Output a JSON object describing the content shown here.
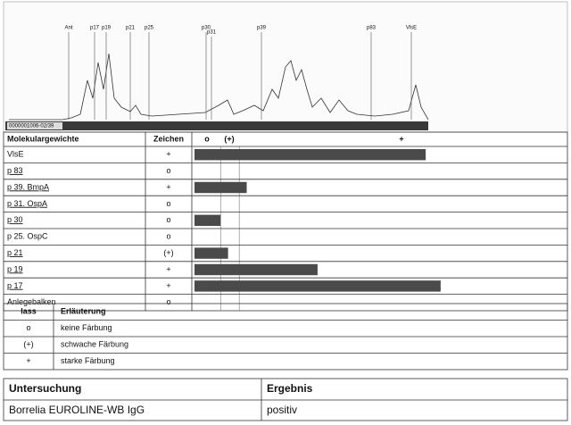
{
  "scan": {
    "band_labels": [
      "Ant",
      "p17",
      "p19",
      "p21",
      "p25",
      "p30",
      "p31",
      "p39",
      "p83",
      "VlsE"
    ],
    "strip_id": "0000001006-02/39"
  },
  "chart_data": {
    "type": "bar",
    "header": [
      "Molekulargewichte",
      "Zeichen"
    ],
    "scale_labels": [
      "o",
      "(+)",
      "+"
    ],
    "categories": [
      "VlsE",
      "p 83",
      "p 39. BmpA",
      "p 31. OspA",
      "p 30",
      "p 25. OspC",
      "p 21",
      "p 19",
      "p 17",
      "Anlegebalken"
    ],
    "signs": [
      "+",
      "o",
      "+",
      "o",
      "o",
      "o",
      "(+)",
      "+",
      "+",
      "o"
    ],
    "underline": [
      false,
      true,
      true,
      true,
      true,
      false,
      true,
      true,
      true,
      false
    ],
    "values": [
      62,
      null,
      14,
      null,
      7,
      null,
      9,
      33,
      66,
      null
    ],
    "xlim": [
      0,
      100
    ],
    "reference_lines": [
      7,
      12
    ],
    "color": "#4a4a4a"
  },
  "legend": {
    "header": [
      "lass",
      "Erläuterung"
    ],
    "rows": [
      [
        "o",
        "keine Färbung"
      ],
      [
        "(+)",
        "schwache Färbung"
      ],
      [
        "+",
        "starke Färbung"
      ]
    ]
  },
  "result": {
    "header": [
      "Untersuchung",
      "Ergebnis"
    ],
    "rows": [
      [
        "Borrelia EUROLINE-WB IgG",
        "positiv"
      ]
    ]
  }
}
